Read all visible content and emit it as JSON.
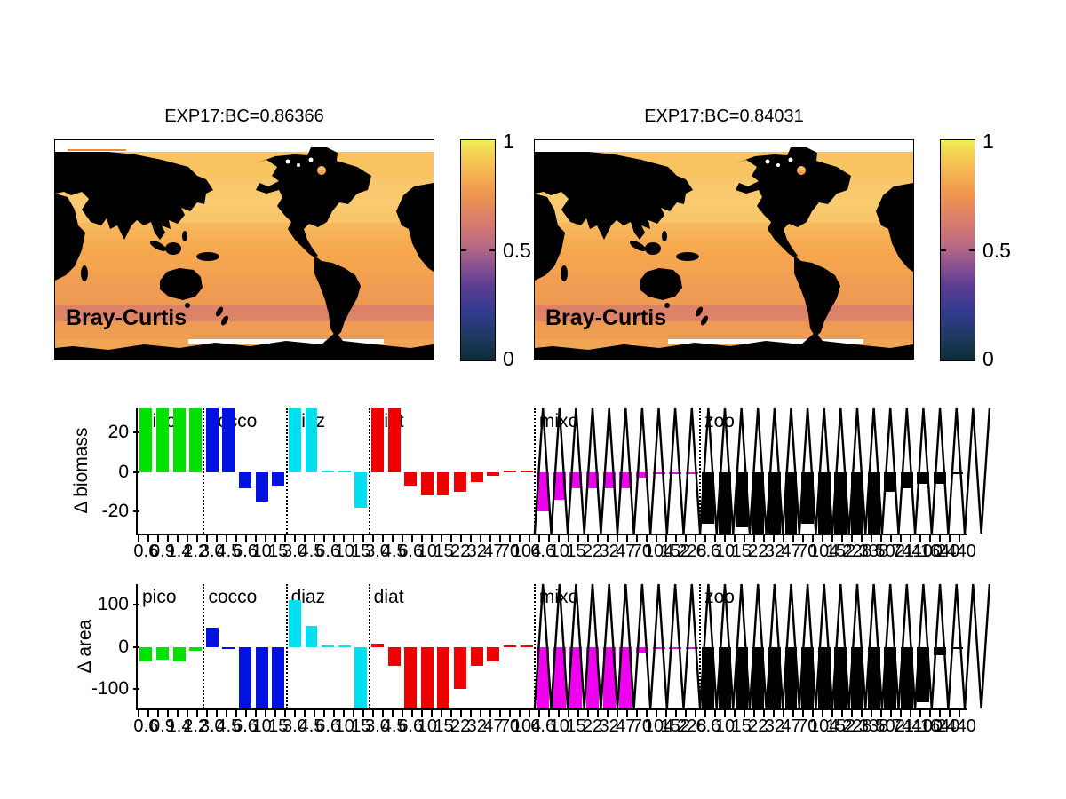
{
  "figure": {
    "background": "#ffffff",
    "description": "Bray-Curtis similarity maps and plankton size-class difference bar charts"
  },
  "maps": [
    {
      "title": "EXP17:BC=0.86366",
      "overlay_label": "Bray-Curtis",
      "colorbar": {
        "min": 0,
        "max": 1,
        "tick_labels": [
          "1",
          "0.5",
          "0"
        ]
      }
    },
    {
      "title": "EXP17:BC=0.84031",
      "overlay_label": "Bray-Curtis",
      "colorbar": {
        "min": 0,
        "max": 1,
        "tick_labels": [
          "1",
          "0.5",
          "0"
        ]
      }
    }
  ],
  "colors": {
    "land": "#000000",
    "ocean_high": "#f7c468",
    "ocean_mid": "#f6a84e",
    "colorbar_stops_bottom_to_top": [
      "#0c2b36",
      "#1c3a5e",
      "#333b8f",
      "#5d3d92",
      "#8f5590",
      "#b86a82",
      "#d57a6f",
      "#ef9450",
      "#f6c352",
      "#f0ee55"
    ]
  },
  "chart_data": [
    {
      "type": "bar",
      "ylabel": "Δ biomass",
      "xlabel": "",
      "ytick_values": [
        20,
        0,
        -20
      ],
      "ytick_labels": [
        "20",
        "0",
        "-20"
      ],
      "ylim": [
        -31,
        32
      ],
      "note": "bars exceeding ylim are clipped at axes edges; black zigzag overlay spans mixo and zoo groups",
      "groups": [
        {
          "name": "pico",
          "color": "#00e100",
          "sizes": [
            0.6,
            0.9,
            1.4,
            2.2
          ],
          "values": [
            40,
            40,
            40,
            40
          ]
        },
        {
          "name": "cocco",
          "color": "#0012e1",
          "sizes": [
            3.0,
            4.5,
            6.6,
            10,
            15
          ],
          "values": [
            40,
            40,
            -8,
            -15,
            -7
          ]
        },
        {
          "name": "diaz",
          "color": "#00dff0",
          "sizes": [
            3.0,
            4.5,
            6.6,
            10,
            15
          ],
          "values": [
            40,
            40,
            0.5,
            0.3,
            -18
          ]
        },
        {
          "name": "diat",
          "color": "#ef0000",
          "sizes": [
            3.0,
            4.5,
            6.6,
            10,
            15,
            22,
            32,
            47,
            70,
            104
          ],
          "values": [
            40,
            40,
            -7,
            -12,
            -12,
            -10,
            -5,
            -2,
            0.4,
            0.3
          ]
        },
        {
          "name": "mixo",
          "color": "#ef00ef",
          "sizes": [
            6.6,
            10,
            15,
            22,
            32,
            47,
            70,
            104,
            152,
            228
          ],
          "values": [
            -20,
            -14,
            -8,
            -8,
            -8,
            -8,
            -3,
            -1,
            -0.4,
            -0.2
          ]
        },
        {
          "name": "zoo",
          "color": "#000000",
          "sizes": [
            6.6,
            10,
            15,
            22,
            32,
            47,
            70,
            104,
            152,
            228,
            338,
            502,
            744,
            1100,
            1640,
            2440
          ],
          "values": [
            -26,
            -40,
            -28,
            -40,
            -40,
            -40,
            -26,
            -40,
            -40,
            -40,
            -40,
            -10,
            -8,
            -6,
            -6,
            -0.5
          ]
        }
      ],
      "overlay": {
        "type": "zigzag",
        "from_group": "mixo",
        "color": "#000000"
      }
    },
    {
      "type": "bar",
      "ylabel": "Δ area",
      "xlabel": "",
      "ytick_values": [
        100,
        0,
        -100
      ],
      "ytick_labels": [
        "100",
        "0",
        "-100"
      ],
      "ylim": [
        -145,
        148
      ],
      "note": "bars exceeding ylim are clipped at axes edges; black zigzag overlay spans mixo and zoo groups",
      "groups": [
        {
          "name": "pico",
          "color": "#00e100",
          "sizes": [
            0.6,
            0.9,
            1.4,
            2.2
          ],
          "values": [
            -35,
            -30,
            -35,
            -10
          ]
        },
        {
          "name": "cocco",
          "color": "#0012e1",
          "sizes": [
            3.0,
            4.5,
            6.6,
            10,
            15
          ],
          "values": [
            45,
            -4,
            -200,
            -200,
            -200
          ]
        },
        {
          "name": "diaz",
          "color": "#00dff0",
          "sizes": [
            3.0,
            4.5,
            6.6,
            10,
            15
          ],
          "values": [
            110,
            50,
            1,
            0.5,
            -200
          ]
        },
        {
          "name": "diat",
          "color": "#ef0000",
          "sizes": [
            3.0,
            4.5,
            6.6,
            10,
            15,
            22,
            32,
            47,
            70,
            104
          ],
          "values": [
            8,
            -45,
            -200,
            -200,
            -200,
            -98,
            -45,
            -35,
            1,
            0.5
          ]
        },
        {
          "name": "mixo",
          "color": "#ef00ef",
          "sizes": [
            6.6,
            10,
            15,
            22,
            32,
            47,
            70,
            104,
            152,
            228
          ],
          "values": [
            -200,
            -200,
            -200,
            -200,
            -200,
            -200,
            -15,
            -5,
            -2,
            -1
          ]
        },
        {
          "name": "zoo",
          "color": "#000000",
          "sizes": [
            6.6,
            10,
            15,
            22,
            32,
            47,
            70,
            104,
            152,
            228,
            338,
            502,
            744,
            1100,
            1640,
            2440
          ],
          "values": [
            -200,
            -200,
            -200,
            -200,
            -200,
            -200,
            -200,
            -200,
            -200,
            -200,
            -200,
            -200,
            -200,
            -130,
            -20,
            -5
          ]
        }
      ],
      "overlay": {
        "type": "zigzag",
        "from_group": "mixo",
        "color": "#000000"
      }
    }
  ]
}
